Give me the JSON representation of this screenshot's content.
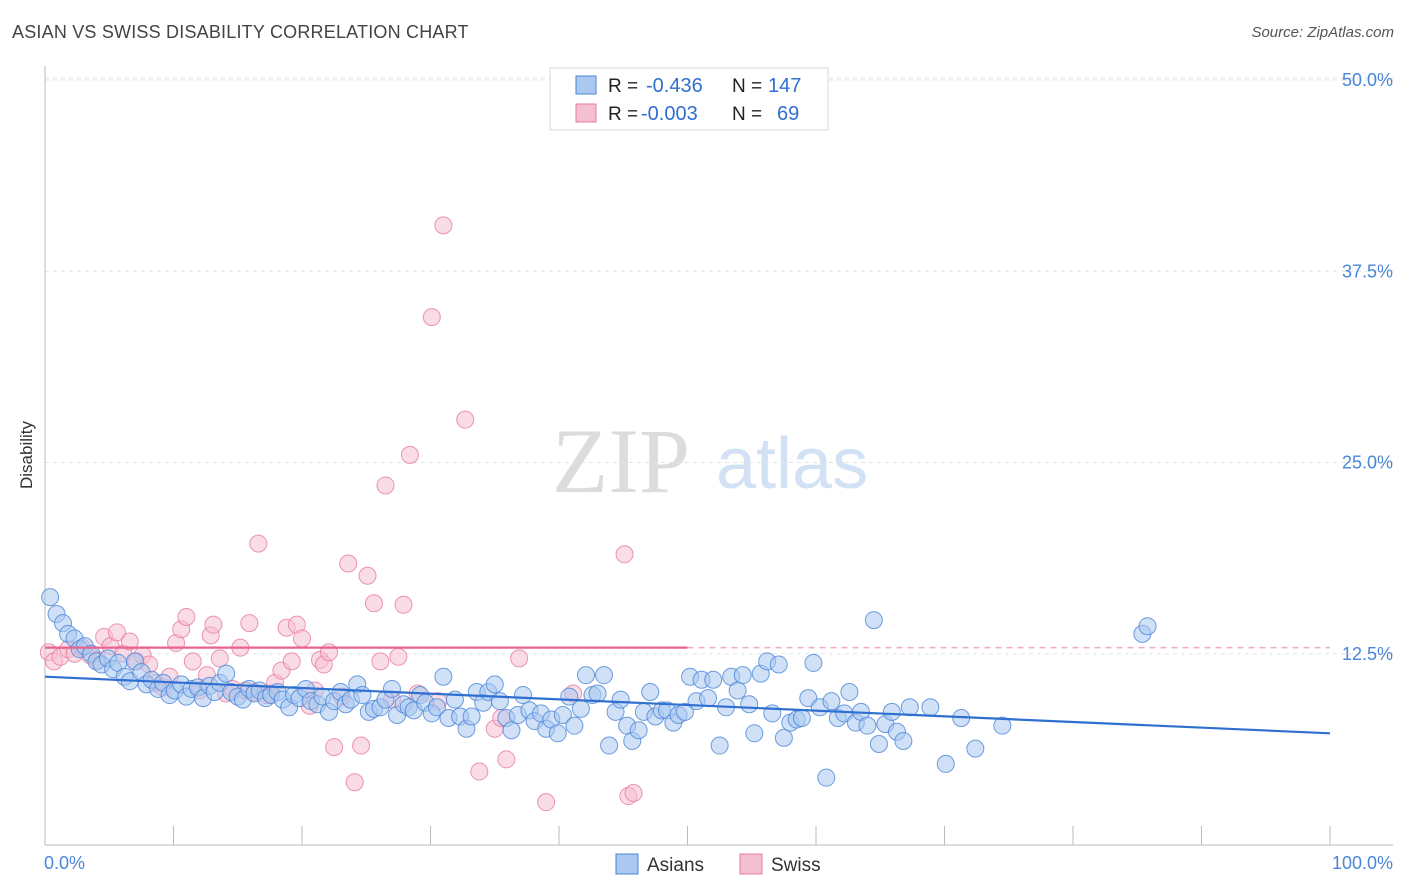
{
  "title": "ASIAN VS SWISS DISABILITY CORRELATION CHART",
  "source": "Source: ZipAtlas.com",
  "watermark": {
    "zip": "ZIP",
    "atlas": "atlas"
  },
  "chart_data": {
    "type": "scatter",
    "ylabel": "Disability",
    "xlim": [
      0,
      100
    ],
    "ylim": [
      0,
      50
    ],
    "x_tick_labels": [
      "0.0%",
      "100.0%"
    ],
    "y_ticks": [
      12.5,
      25.0,
      37.5,
      50.0
    ],
    "y_tick_labels": [
      "12.5%",
      "25.0%",
      "37.5%",
      "50.0%"
    ],
    "grid": true,
    "legend_position": "bottom-center",
    "colors": {
      "asians": "#4a86d8",
      "swiss": "#e87aa0",
      "asians_fill": "#aac8f0",
      "swiss_fill": "#f5bfd2"
    },
    "stats": [
      {
        "series": "Asians",
        "r_label": "R =",
        "r": "-0.436",
        "n_label": "N =",
        "n": "147"
      },
      {
        "series": "Swiss",
        "r_label": "R =",
        "r": "-0.003",
        "n_label": "N =",
        "n": "69"
      }
    ],
    "series": [
      {
        "name": "Asians",
        "trend": {
          "x0": 0,
          "y0": 11.0,
          "x1": 100,
          "y1": 7.3
        },
        "points": [
          [
            0.4,
            16.2
          ],
          [
            0.9,
            15.1
          ],
          [
            1.4,
            14.5
          ],
          [
            1.8,
            13.8
          ],
          [
            2.3,
            13.5
          ],
          [
            2.7,
            12.8
          ],
          [
            3.1,
            13.0
          ],
          [
            3.6,
            12.5
          ],
          [
            4.0,
            12.0
          ],
          [
            4.4,
            11.8
          ],
          [
            4.9,
            12.2
          ],
          [
            5.3,
            11.5
          ],
          [
            5.7,
            11.9
          ],
          [
            6.2,
            11.0
          ],
          [
            6.6,
            10.7
          ],
          [
            7.0,
            12.0
          ],
          [
            7.5,
            11.3
          ],
          [
            7.9,
            10.5
          ],
          [
            8.3,
            10.8
          ],
          [
            8.8,
            10.2
          ],
          [
            9.2,
            10.6
          ],
          [
            9.7,
            9.8
          ],
          [
            10.1,
            10.1
          ],
          [
            10.6,
            10.5
          ],
          [
            11.0,
            9.7
          ],
          [
            11.4,
            10.2
          ],
          [
            11.9,
            10.3
          ],
          [
            12.3,
            9.6
          ],
          [
            12.8,
            10.4
          ],
          [
            13.2,
            10.0
          ],
          [
            13.6,
            10.6
          ],
          [
            14.1,
            11.2
          ],
          [
            14.5,
            10.0
          ],
          [
            15.0,
            9.7
          ],
          [
            15.4,
            9.5
          ],
          [
            15.9,
            10.2
          ],
          [
            16.3,
            9.9
          ],
          [
            16.7,
            10.1
          ],
          [
            17.2,
            9.6
          ],
          [
            17.6,
            9.8
          ],
          [
            18.1,
            10.0
          ],
          [
            18.5,
            9.5
          ],
          [
            19.0,
            9.0
          ],
          [
            19.4,
            9.8
          ],
          [
            19.8,
            9.6
          ],
          [
            20.3,
            10.2
          ],
          [
            20.7,
            9.4
          ],
          [
            21.2,
            9.2
          ],
          [
            21.6,
            9.7
          ],
          [
            22.1,
            8.7
          ],
          [
            22.5,
            9.4
          ],
          [
            23.0,
            10.0
          ],
          [
            23.4,
            9.2
          ],
          [
            23.8,
            9.5
          ],
          [
            24.3,
            10.5
          ],
          [
            24.7,
            9.8
          ],
          [
            25.2,
            8.7
          ],
          [
            25.6,
            8.9
          ],
          [
            26.1,
            9.0
          ],
          [
            26.5,
            9.5
          ],
          [
            27.0,
            10.2
          ],
          [
            27.4,
            8.5
          ],
          [
            27.9,
            9.2
          ],
          [
            28.3,
            9.0
          ],
          [
            28.7,
            8.8
          ],
          [
            29.2,
            9.8
          ],
          [
            29.6,
            9.3
          ],
          [
            30.1,
            8.6
          ],
          [
            30.5,
            9.0
          ],
          [
            31.0,
            11.0
          ],
          [
            31.4,
            8.3
          ],
          [
            31.9,
            9.5
          ],
          [
            32.3,
            8.4
          ],
          [
            32.8,
            7.6
          ],
          [
            33.2,
            8.4
          ],
          [
            33.6,
            10.0
          ],
          [
            34.1,
            9.3
          ],
          [
            34.5,
            10.0
          ],
          [
            35.0,
            10.5
          ],
          [
            35.4,
            9.4
          ],
          [
            35.9,
            8.3
          ],
          [
            36.3,
            7.5
          ],
          [
            36.8,
            8.5
          ],
          [
            37.2,
            9.8
          ],
          [
            37.7,
            8.8
          ],
          [
            38.1,
            8.1
          ],
          [
            38.6,
            8.6
          ],
          [
            39.0,
            7.6
          ],
          [
            39.4,
            8.2
          ],
          [
            39.9,
            7.3
          ],
          [
            40.3,
            8.5
          ],
          [
            40.8,
            9.7
          ],
          [
            41.2,
            7.8
          ],
          [
            41.7,
            8.9
          ],
          [
            42.1,
            11.1
          ],
          [
            42.6,
            9.8
          ],
          [
            43.0,
            9.9
          ],
          [
            43.5,
            11.1
          ],
          [
            43.9,
            6.5
          ],
          [
            44.4,
            8.7
          ],
          [
            44.8,
            9.5
          ],
          [
            45.3,
            7.8
          ],
          [
            45.7,
            6.8
          ],
          [
            46.2,
            7.5
          ],
          [
            46.6,
            8.7
          ],
          [
            47.1,
            10.0
          ],
          [
            47.5,
            8.4
          ],
          [
            48.0,
            8.8
          ],
          [
            48.4,
            8.8
          ],
          [
            48.9,
            8.0
          ],
          [
            49.3,
            8.5
          ],
          [
            49.8,
            8.7
          ],
          [
            50.2,
            11.0
          ],
          [
            50.7,
            9.4
          ],
          [
            51.1,
            10.8
          ],
          [
            51.6,
            9.6
          ],
          [
            52.0,
            10.8
          ],
          [
            52.5,
            6.5
          ],
          [
            53.0,
            9.0
          ],
          [
            53.4,
            11.0
          ],
          [
            53.9,
            10.1
          ],
          [
            54.3,
            11.1
          ],
          [
            54.8,
            9.2
          ],
          [
            55.2,
            7.3
          ],
          [
            55.7,
            11.2
          ],
          [
            56.2,
            12.0
          ],
          [
            56.6,
            8.6
          ],
          [
            57.1,
            11.8
          ],
          [
            57.5,
            7.0
          ],
          [
            58.0,
            8.0
          ],
          [
            58.5,
            8.2
          ],
          [
            58.9,
            8.3
          ],
          [
            59.4,
            9.6
          ],
          [
            59.8,
            11.9
          ],
          [
            60.3,
            9.0
          ],
          [
            60.8,
            4.4
          ],
          [
            61.2,
            9.4
          ],
          [
            61.7,
            8.3
          ],
          [
            62.2,
            8.6
          ],
          [
            62.6,
            10.0
          ],
          [
            63.1,
            8.0
          ],
          [
            63.5,
            8.7
          ],
          [
            64.0,
            7.8
          ],
          [
            64.5,
            14.7
          ],
          [
            64.9,
            6.6
          ],
          [
            65.4,
            7.9
          ],
          [
            65.9,
            8.7
          ],
          [
            66.3,
            7.4
          ],
          [
            66.8,
            6.8
          ],
          [
            67.3,
            9.0
          ],
          [
            68.9,
            9.0
          ],
          [
            70.1,
            5.3
          ],
          [
            71.3,
            8.3
          ],
          [
            72.4,
            6.3
          ],
          [
            74.5,
            7.8
          ],
          [
            85.4,
            13.8
          ],
          [
            85.8,
            14.3
          ]
        ]
      },
      {
        "name": "Swiss",
        "trend": {
          "x0": 0,
          "y0": 12.9,
          "x1": 100,
          "y1": 12.9,
          "solid_until": 50
        },
        "points": [
          [
            0.3,
            12.6
          ],
          [
            0.7,
            12.0
          ],
          [
            1.2,
            12.3
          ],
          [
            1.8,
            12.8
          ],
          [
            2.3,
            12.5
          ],
          [
            2.9,
            12.9
          ],
          [
            3.5,
            12.4
          ],
          [
            4.1,
            12.1
          ],
          [
            4.6,
            13.6
          ],
          [
            5.1,
            13.0
          ],
          [
            5.6,
            13.9
          ],
          [
            6.1,
            12.5
          ],
          [
            6.6,
            13.3
          ],
          [
            7.1,
            12.0
          ],
          [
            7.6,
            12.4
          ],
          [
            8.1,
            11.8
          ],
          [
            8.6,
            10.6
          ],
          [
            9.2,
            10.3
          ],
          [
            9.7,
            11.0
          ],
          [
            10.2,
            13.2
          ],
          [
            10.6,
            14.1
          ],
          [
            11.0,
            14.9
          ],
          [
            11.5,
            12.0
          ],
          [
            12.0,
            10.1
          ],
          [
            12.6,
            11.1
          ],
          [
            12.9,
            13.7
          ],
          [
            13.1,
            14.4
          ],
          [
            13.6,
            12.2
          ],
          [
            14.1,
            9.9
          ],
          [
            14.6,
            10.2
          ],
          [
            15.2,
            12.9
          ],
          [
            15.6,
            10.1
          ],
          [
            15.9,
            14.5
          ],
          [
            16.3,
            10.0
          ],
          [
            16.6,
            19.7
          ],
          [
            17.2,
            9.8
          ],
          [
            17.6,
            9.9
          ],
          [
            17.9,
            10.6
          ],
          [
            18.4,
            11.4
          ],
          [
            18.8,
            14.2
          ],
          [
            19.2,
            12.0
          ],
          [
            19.6,
            14.4
          ],
          [
            20.0,
            13.5
          ],
          [
            20.6,
            9.1
          ],
          [
            21.0,
            10.1
          ],
          [
            21.4,
            12.1
          ],
          [
            21.7,
            11.8
          ],
          [
            22.1,
            12.6
          ],
          [
            22.5,
            6.4
          ],
          [
            23.1,
            9.7
          ],
          [
            23.6,
            18.4
          ],
          [
            24.1,
            4.1
          ],
          [
            24.6,
            6.5
          ],
          [
            25.1,
            17.6
          ],
          [
            25.6,
            15.8
          ],
          [
            26.1,
            12.0
          ],
          [
            26.5,
            23.5
          ],
          [
            27.0,
            9.5
          ],
          [
            27.5,
            12.3
          ],
          [
            27.9,
            15.7
          ],
          [
            28.4,
            25.5
          ],
          [
            29.0,
            9.9
          ],
          [
            30.1,
            34.5
          ],
          [
            30.6,
            9.4
          ],
          [
            31.0,
            40.5
          ],
          [
            32.7,
            27.8
          ],
          [
            33.8,
            4.8
          ],
          [
            35.0,
            7.6
          ],
          [
            35.5,
            8.3
          ],
          [
            35.9,
            5.6
          ],
          [
            36.9,
            12.2
          ],
          [
            39.0,
            2.8
          ],
          [
            41.1,
            9.9
          ],
          [
            45.1,
            19.0
          ],
          [
            45.4,
            3.2
          ],
          [
            45.8,
            3.4
          ]
        ]
      }
    ]
  },
  "legend": [
    {
      "label": "Asians",
      "color": "#4a86d8",
      "fill": "#aac8f0"
    },
    {
      "label": "Swiss",
      "color": "#e87aa0",
      "fill": "#f5bfd2"
    }
  ]
}
